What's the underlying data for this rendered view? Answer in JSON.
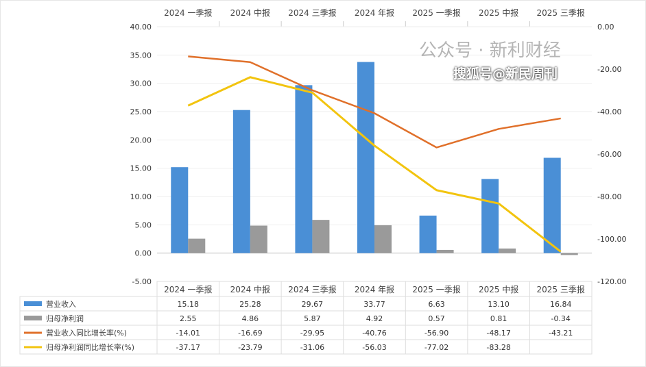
{
  "chart_data": {
    "type": "bar+line",
    "categories": [
      "2024 一季报",
      "2024 中报",
      "2024 三季报",
      "2024 年报",
      "2025 一季报",
      "2025 中报",
      "2025 三季报"
    ],
    "left_axis": {
      "ylim": [
        -5,
        40
      ],
      "ticks": [
        "40.00",
        "35.00",
        "30.00",
        "25.00",
        "20.00",
        "15.00",
        "10.00",
        "5.00",
        "0.00",
        "-5.00"
      ]
    },
    "right_axis": {
      "ylim": [
        -120,
        0
      ],
      "ticks": [
        "0.00",
        "-20.00",
        "-40.00",
        "-60.00",
        "-80.00",
        "-100.00",
        "-120.00"
      ]
    },
    "grid": true,
    "legend": "table-bottom",
    "series": [
      {
        "name": "营业收入",
        "type": "bar",
        "axis": "left",
        "color": "#4a8fd6",
        "values": [
          15.18,
          25.28,
          29.67,
          33.77,
          6.63,
          13.1,
          16.84
        ],
        "labels": [
          "15.18",
          "25.28",
          "29.67",
          "33.77",
          "6.63",
          "13.10",
          "16.84"
        ]
      },
      {
        "name": "归母净利润",
        "type": "bar",
        "axis": "left",
        "color": "#9a9a9a",
        "values": [
          2.55,
          4.86,
          5.87,
          4.92,
          0.57,
          0.81,
          -0.34
        ],
        "labels": [
          "2.55",
          "4.86",
          "5.87",
          "4.92",
          "0.57",
          "0.81",
          "-0.34"
        ]
      },
      {
        "name": "营业收入同比增长率(%)",
        "type": "line",
        "axis": "right",
        "color": "#e0702a",
        "values": [
          -14.01,
          -16.69,
          -29.95,
          -40.76,
          -56.9,
          -48.17,
          -43.21
        ],
        "labels": [
          "-14.01",
          "-16.69",
          "-29.95",
          "-40.76",
          "-56.90",
          "-48.17",
          "-43.21"
        ]
      },
      {
        "name": "归母净利润同比增长率(%)",
        "type": "line",
        "axis": "right",
        "color": "#f2c40f",
        "values": [
          -37.17,
          -23.79,
          -31.06,
          -56.03,
          -77.02,
          -83.28,
          -106.0
        ],
        "labels": [
          "-37.17",
          "-23.79",
          "-31.06",
          "-56.03",
          "-77.02",
          "-83.28",
          ""
        ]
      }
    ]
  },
  "watermarks": {
    "wechat": "公众号 · 新利财经",
    "sohu": "搜狐号@新民周刊"
  }
}
